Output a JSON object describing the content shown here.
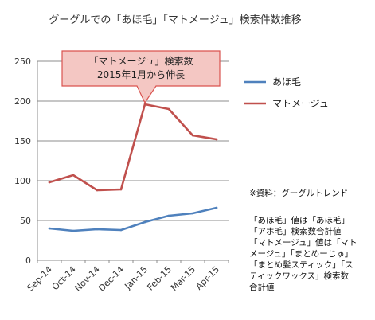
{
  "chart_data": {
    "type": "line",
    "title": "グーグルでの「あほ毛」「マトメージュ」検索件数推移",
    "categories": [
      "Sep-14",
      "Oct-14",
      "Nov-14",
      "Dec-14",
      "Jan-15",
      "Feb-15",
      "Mar-15",
      "Apr-15"
    ],
    "series": [
      {
        "name": "あほ毛",
        "color": "#4f81bd",
        "values": [
          40,
          37,
          39,
          38,
          48,
          56,
          59,
          66
        ]
      },
      {
        "name": "マトメージュ",
        "color": "#c0504d",
        "values": [
          98,
          107,
          88,
          89,
          196,
          190,
          157,
          152
        ]
      }
    ],
    "ylim": [
      0,
      250
    ],
    "yticks": [
      0,
      50,
      100,
      150,
      200,
      250
    ],
    "grid": true,
    "legend": "right",
    "annotation": {
      "lines": [
        "「マトメージュ」検索数",
        "2015年1月から伸長"
      ],
      "fill": "#f4c7c3",
      "border": "#d9534f",
      "target_category": "Jan-15",
      "target_series": "マトメージュ"
    }
  },
  "notes": {
    "source": "※資料：グーグルトレンド",
    "details": [
      "「あほ毛」値は「あほ毛」",
      "「アホ毛」検索数合計値",
      "「マトメージュ」値は「マト",
      "メージュ」「まとめーじゅ」",
      "「まとめ髪スティック」「ス",
      "ティックワックス」検索数",
      "合計値"
    ]
  }
}
